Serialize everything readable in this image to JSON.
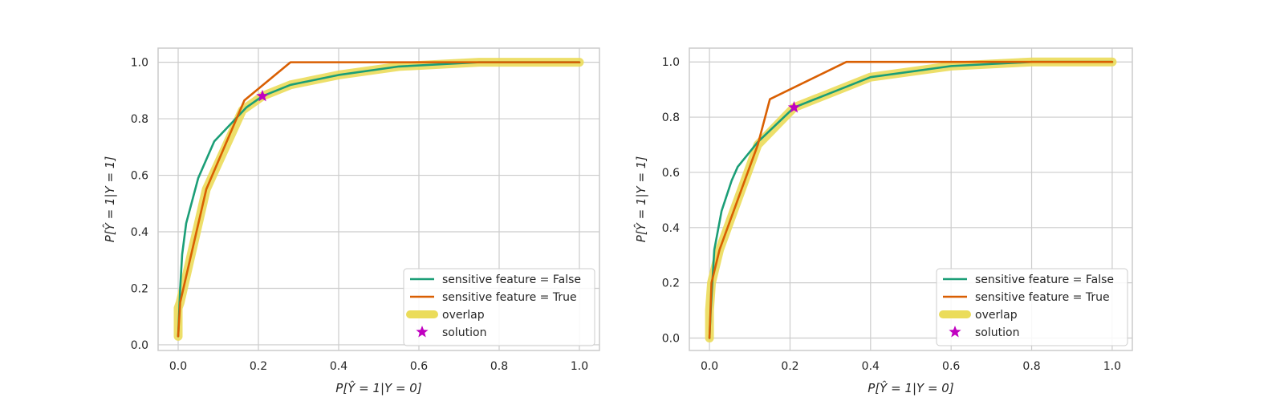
{
  "chart_data": [
    {
      "type": "line",
      "title": "",
      "xlabel": "P[Ŷ = 1|Y = 0]",
      "ylabel": "P[Ŷ = 1|Y = 1]",
      "xlim": [
        -0.05,
        1.05
      ],
      "ylim": [
        -0.02,
        1.05
      ],
      "xticks": [
        0.0,
        0.2,
        0.4,
        0.6,
        0.8,
        1.0
      ],
      "yticks": [
        0.0,
        0.2,
        0.4,
        0.6,
        0.8,
        1.0
      ],
      "xtick_labels": [
        "0.0",
        "0.2",
        "0.4",
        "0.6",
        "0.8",
        "1.0"
      ],
      "ytick_labels": [
        "0.0",
        "0.2",
        "0.4",
        "0.6",
        "0.8",
        "1.0"
      ],
      "grid": true,
      "legend_position": "lower-right",
      "series": [
        {
          "name": "overlap",
          "color": "#ebdc5a",
          "style": "thick-band",
          "x": [
            0.0,
            0.0,
            0.005,
            0.07,
            0.16,
            0.21,
            0.28,
            0.4,
            0.55,
            0.75,
            1.0
          ],
          "y": [
            0.03,
            0.13,
            0.15,
            0.55,
            0.83,
            0.88,
            0.92,
            0.955,
            0.985,
            1.0,
            1.0
          ]
        },
        {
          "name": "sensitive feature = False",
          "color": "#1b9e77",
          "style": "line",
          "x": [
            0.0,
            0.005,
            0.01,
            0.02,
            0.05,
            0.09,
            0.17,
            0.21,
            0.28,
            0.4,
            0.55,
            0.75,
            1.0
          ],
          "y": [
            0.03,
            0.2,
            0.32,
            0.43,
            0.59,
            0.72,
            0.84,
            0.88,
            0.92,
            0.955,
            0.985,
            1.0,
            1.0
          ]
        },
        {
          "name": "sensitive feature = True",
          "color": "#d95f02",
          "style": "line",
          "x": [
            0.0,
            0.005,
            0.07,
            0.165,
            0.28,
            0.6,
            1.0
          ],
          "y": [
            0.03,
            0.15,
            0.55,
            0.865,
            1.0,
            1.0,
            1.0
          ]
        }
      ],
      "solution": {
        "name": "solution",
        "color": "#c000c0",
        "x": 0.21,
        "y": 0.88
      }
    },
    {
      "type": "line",
      "title": "",
      "xlabel": "P[Ŷ = 1|Y = 0]",
      "ylabel": "P[Ŷ = 1|Y = 1]",
      "xlim": [
        -0.05,
        1.05
      ],
      "ylim": [
        -0.045,
        1.05
      ],
      "xticks": [
        0.0,
        0.2,
        0.4,
        0.6,
        0.8,
        1.0
      ],
      "yticks": [
        0.0,
        0.2,
        0.4,
        0.6,
        0.8,
        1.0
      ],
      "xtick_labels": [
        "0.0",
        "0.2",
        "0.4",
        "0.6",
        "0.8",
        "1.0"
      ],
      "ytick_labels": [
        "0.0",
        "0.2",
        "0.4",
        "0.6",
        "0.8",
        "1.0"
      ],
      "grid": true,
      "legend_position": "lower-right",
      "series": [
        {
          "name": "overlap",
          "color": "#ebdc5a",
          "style": "thick-band",
          "x": [
            0.0,
            0.0,
            0.005,
            0.025,
            0.07,
            0.12,
            0.21,
            0.4,
            0.6,
            0.8,
            1.0
          ],
          "y": [
            0.0,
            0.1,
            0.2,
            0.32,
            0.5,
            0.7,
            0.835,
            0.945,
            0.985,
            1.0,
            1.0
          ]
        },
        {
          "name": "sensitive feature = False",
          "color": "#1b9e77",
          "style": "line",
          "x": [
            0.0,
            0.003,
            0.007,
            0.012,
            0.03,
            0.055,
            0.07,
            0.12,
            0.21,
            0.4,
            0.6,
            0.8,
            1.0
          ],
          "y": [
            0.0,
            0.1,
            0.2,
            0.32,
            0.46,
            0.57,
            0.62,
            0.71,
            0.835,
            0.945,
            0.985,
            1.0,
            1.0
          ]
        },
        {
          "name": "sensitive feature = True",
          "color": "#d95f02",
          "style": "line",
          "x": [
            0.0,
            0.005,
            0.025,
            0.07,
            0.12,
            0.15,
            0.34,
            0.6,
            1.0
          ],
          "y": [
            0.0,
            0.2,
            0.32,
            0.5,
            0.7,
            0.865,
            1.0,
            1.0,
            1.0
          ]
        }
      ],
      "solution": {
        "name": "solution",
        "color": "#c000c0",
        "x": 0.21,
        "y": 0.835
      }
    }
  ],
  "legend": {
    "items": [
      {
        "label": "sensitive feature = False",
        "color": "#1b9e77",
        "kind": "line"
      },
      {
        "label": "sensitive feature = True",
        "color": "#d95f02",
        "kind": "line"
      },
      {
        "label": "overlap",
        "color": "#ebdc5a",
        "kind": "band"
      },
      {
        "label": "solution",
        "color": "#c000c0",
        "kind": "star"
      }
    ]
  }
}
